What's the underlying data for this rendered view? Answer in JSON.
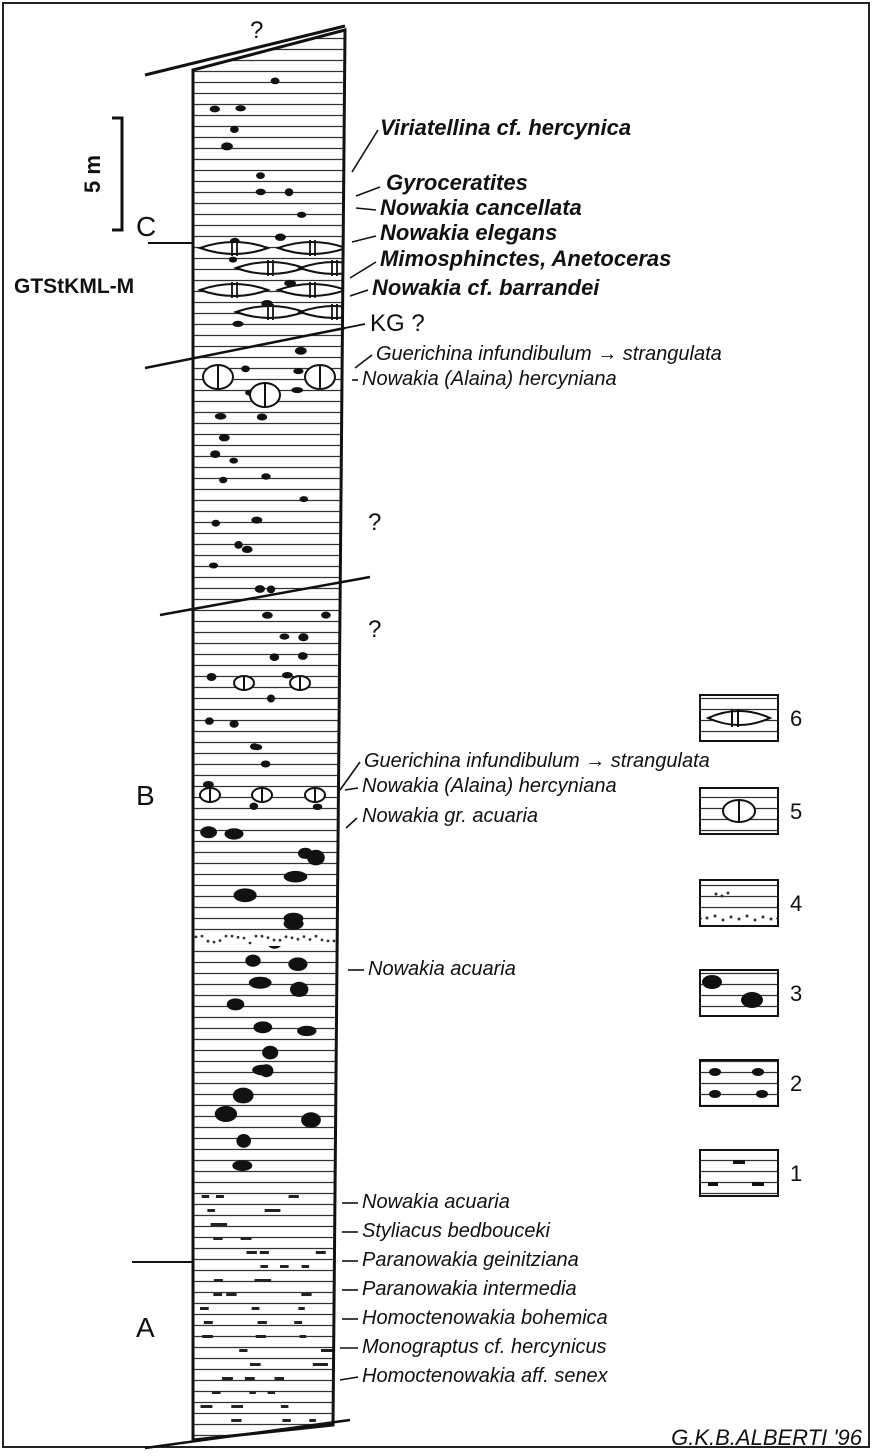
{
  "units": {
    "a": "A",
    "b": "B",
    "c": "C"
  },
  "scale_label": "5 m",
  "section_code": "GTStKML-M",
  "question_mark": "?",
  "kg_label": "KG ?",
  "fossils_upper": [
    "Viriatellina cf. hercynica",
    "Gyroceratites",
    "Nowakia cancellata",
    "Nowakia elegans",
    "Mimosphinctes, Anetoceras",
    "Nowakia cf. barrandei"
  ],
  "fossils_c_lower": [
    "Guerichina infundibulum → strangulata",
    "Nowakia (Alaina) hercyniana"
  ],
  "fossils_b": [
    "Guerichina infundibulum → strangulata",
    "Nowakia (Alaina) hercyniana",
    "Nowakia gr. acuaria",
    "Nowakia acuaria"
  ],
  "fossils_a": [
    "Nowakia acuaria",
    "Styliacus bedbouceki",
    "Paranowakia geinitziana",
    "Paranowakia intermedia",
    "Homoctenowakia bohemica",
    "Monograptus cf. hercynicus",
    "Homoctenowakia aff. senex"
  ],
  "legend": [
    "6",
    "5",
    "4",
    "3",
    "2",
    "1"
  ],
  "credit": "G.K.B.ALBERTI '96"
}
